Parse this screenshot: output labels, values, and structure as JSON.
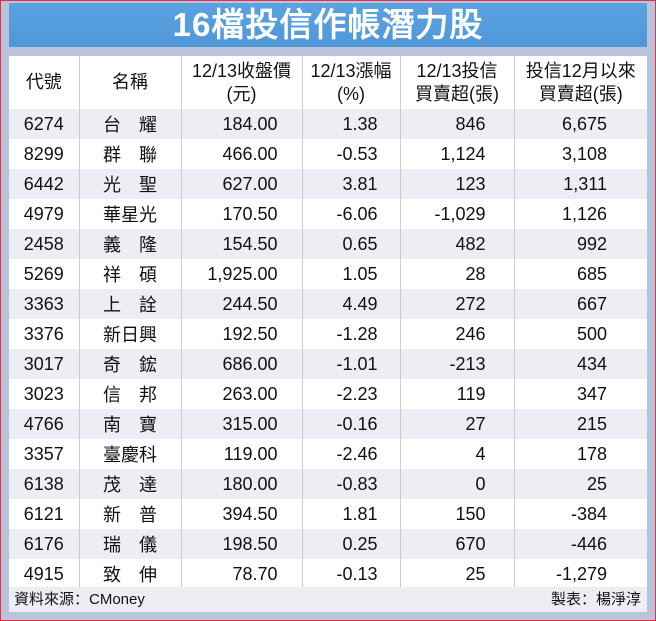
{
  "title": "16檔投信作帳潛力股",
  "columns": [
    "代號",
    "名稱",
    "12/13收盤價\n(元)",
    "12/13漲幅\n(%)",
    "12/13投信\n買賣超(張)",
    "投信12月以來\n買賣超(張)"
  ],
  "rows": [
    [
      "6274",
      "台　耀",
      "184.00",
      "1.38",
      "846",
      "6,675"
    ],
    [
      "8299",
      "群　聯",
      "466.00",
      "-0.53",
      "1,124",
      "3,108"
    ],
    [
      "6442",
      "光　聖",
      "627.00",
      "3.81",
      "123",
      "1,311"
    ],
    [
      "4979",
      "華星光",
      "170.50",
      "-6.06",
      "-1,029",
      "1,126"
    ],
    [
      "2458",
      "義　隆",
      "154.50",
      "0.65",
      "482",
      "992"
    ],
    [
      "5269",
      "祥　碩",
      "1,925.00",
      "1.05",
      "28",
      "685"
    ],
    [
      "3363",
      "上　詮",
      "244.50",
      "4.49",
      "272",
      "667"
    ],
    [
      "3376",
      "新日興",
      "192.50",
      "-1.28",
      "246",
      "500"
    ],
    [
      "3017",
      "奇　鋐",
      "686.00",
      "-1.01",
      "-213",
      "434"
    ],
    [
      "3023",
      "信　邦",
      "263.00",
      "-2.23",
      "119",
      "347"
    ],
    [
      "4766",
      "南　寶",
      "315.00",
      "-0.16",
      "27",
      "215"
    ],
    [
      "3357",
      "臺慶科",
      "119.00",
      "-2.46",
      "4",
      "178"
    ],
    [
      "6138",
      "茂　達",
      "180.00",
      "-0.83",
      "0",
      "25"
    ],
    [
      "6121",
      "新　普",
      "394.50",
      "1.81",
      "150",
      "-384"
    ],
    [
      "6176",
      "瑞　儀",
      "198.50",
      "0.25",
      "670",
      "-446"
    ],
    [
      "4915",
      "致　伸",
      "78.70",
      "-0.13",
      "25",
      "-1,279"
    ]
  ],
  "footer": {
    "source": "資料來源：CMoney",
    "author": "製表：楊淨淳"
  },
  "colors": {
    "title_bar": "#4f97d8",
    "border": "#e8303a",
    "frame": "#b9c3dc",
    "row_alt": "#eceef3"
  }
}
